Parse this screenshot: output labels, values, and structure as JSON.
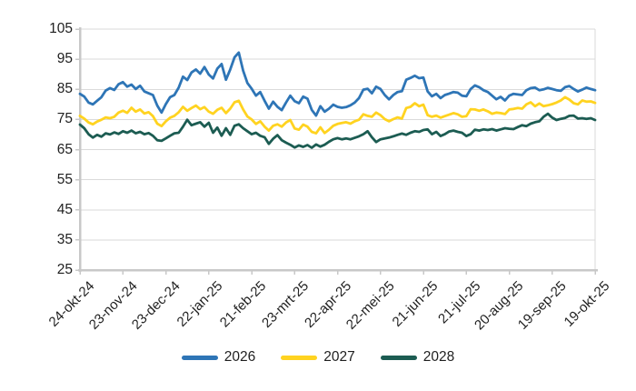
{
  "figure": {
    "background": "#FFFFFF"
  },
  "colors": {
    "series_2026": "#2E75B6",
    "series_2027": "#FFD320",
    "series_2028": "#1C5C52",
    "gridline": "#DADADA",
    "axis_line": "#C8C8C8",
    "text": "#1F1F1F"
  },
  "chart_data": {
    "type": "line",
    "title": "",
    "xlabel": "",
    "ylabel": "",
    "grid": true,
    "legend_position": "bottom",
    "y_axis": {
      "lim": [
        25,
        105
      ],
      "ticks": [
        25,
        35,
        45,
        55,
        65,
        75,
        85,
        95,
        105
      ]
    },
    "x_axis": {
      "tick_labels": [
        "24-okt-24",
        "23-nov-24",
        "23-dec-24",
        "22-jan-25",
        "21-feb-25",
        "23-mrt-25",
        "22-apr-25",
        "22-mei-25",
        "21-jun-25",
        "21-jul-25",
        "20-aug-25",
        "19-sep-25",
        "19-okt-25"
      ],
      "range": [
        "24-okt-24",
        "19-okt-25"
      ],
      "point_spacing_days": 3
    },
    "series": [
      {
        "name": "2026",
        "color": "#2E75B6",
        "values": [
          83.5,
          82.6,
          80.6,
          80.0,
          81.2,
          82.4,
          84.6,
          85.4,
          84.8,
          86.7,
          87.4,
          85.9,
          86.6,
          85.1,
          86.2,
          84.3,
          83.7,
          83.1,
          79.6,
          77.3,
          80.1,
          82.4,
          83.1,
          85.6,
          89.2,
          88.1,
          90.6,
          91.6,
          90.2,
          92.4,
          89.9,
          88.6,
          91.9,
          93.4,
          88.2,
          91.6,
          95.6,
          97.2,
          91.2,
          87.1,
          85.2,
          82.9,
          84.1,
          81.2,
          78.6,
          80.9,
          79.2,
          78.1,
          80.6,
          82.9,
          81.1,
          80.4,
          82.6,
          81.9,
          78.2,
          76.3,
          79.4,
          77.6,
          78.6,
          79.9,
          79.2,
          78.9,
          79.1,
          79.7,
          80.6,
          82.1,
          84.9,
          85.2,
          83.7,
          85.9,
          85.1,
          83.1,
          81.7,
          83.1,
          84.1,
          84.4,
          88.2,
          88.8,
          89.5,
          88.7,
          88.9,
          84.3,
          82.7,
          83.5,
          82.1,
          83.1,
          83.6,
          84.1,
          83.9,
          82.9,
          82.7,
          85.1,
          86.3,
          85.7,
          84.7,
          84.1,
          82.9,
          81.7,
          82.5,
          81.3,
          82.9,
          83.5,
          83.3,
          83.1,
          84.7,
          85.4,
          85.6,
          84.7,
          85.0,
          85.5,
          85.1,
          84.7,
          84.5,
          85.7,
          86.1,
          85.1,
          84.3,
          84.9,
          85.6,
          85.1,
          84.7
        ]
      },
      {
        "name": "2027",
        "color": "#FFD320",
        "values": [
          76.2,
          75.3,
          74.0,
          73.4,
          74.3,
          74.9,
          75.7,
          75.4,
          75.9,
          77.3,
          77.9,
          77.2,
          78.9,
          77.6,
          78.3,
          77.0,
          77.4,
          76.1,
          73.6,
          72.8,
          74.4,
          75.6,
          76.2,
          77.4,
          79.2,
          77.9,
          78.8,
          79.6,
          78.4,
          79.1,
          77.6,
          76.9,
          78.2,
          78.9,
          77.1,
          78.6,
          80.7,
          81.2,
          78.3,
          76.0,
          75.0,
          73.5,
          74.4,
          72.6,
          71.3,
          72.9,
          73.4,
          72.6,
          74.0,
          74.8,
          72.0,
          71.6,
          73.3,
          72.6,
          70.9,
          70.4,
          72.4,
          70.5,
          71.6,
          72.9,
          73.5,
          73.8,
          74.1,
          73.6,
          74.4,
          74.9,
          76.7,
          76.2,
          75.9,
          77.3,
          76.4,
          75.1,
          74.4,
          75.1,
          75.7,
          75.3,
          78.8,
          79.2,
          80.4,
          79.4,
          79.9,
          76.4,
          75.9,
          76.3,
          75.6,
          76.1,
          76.6,
          77.1,
          76.7,
          75.9,
          76.1,
          78.4,
          78.3,
          77.9,
          78.3,
          77.7,
          76.9,
          77.3,
          77.1,
          76.8,
          78.3,
          78.5,
          78.8,
          78.6,
          80.0,
          80.7,
          79.4,
          80.3,
          79.4,
          79.7,
          80.1,
          80.6,
          81.3,
          82.4,
          81.6,
          80.4,
          80.0,
          81.3,
          80.9,
          81.0,
          80.5
        ]
      },
      {
        "name": "2028",
        "color": "#1C5C52",
        "values": [
          73.3,
          72.1,
          70.1,
          69.0,
          69.9,
          69.3,
          70.4,
          70.0,
          70.7,
          70.2,
          71.1,
          70.6,
          71.3,
          70.4,
          70.9,
          70.1,
          70.5,
          69.6,
          68.1,
          67.9,
          68.7,
          69.6,
          70.4,
          70.6,
          72.6,
          74.9,
          73.1,
          73.6,
          74.1,
          72.6,
          73.9,
          70.6,
          72.3,
          69.6,
          72.1,
          69.9,
          72.9,
          73.4,
          72.1,
          71.1,
          70.1,
          70.6,
          69.6,
          69.1,
          66.9,
          68.6,
          69.8,
          68.1,
          67.3,
          66.6,
          65.7,
          66.4,
          65.9,
          66.5,
          65.6,
          66.7,
          66.0,
          66.6,
          67.6,
          68.4,
          68.8,
          68.4,
          68.7,
          68.4,
          68.9,
          69.4,
          70.1,
          71.1,
          69.1,
          67.5,
          68.4,
          68.7,
          69.0,
          69.4,
          69.9,
          70.3,
          69.9,
          70.6,
          71.1,
          70.9,
          71.5,
          71.7,
          70.1,
          70.9,
          69.5,
          70.1,
          71.0,
          71.3,
          70.9,
          70.6,
          69.5,
          70.1,
          71.6,
          71.3,
          71.7,
          71.5,
          71.8,
          71.3,
          71.7,
          72.1,
          71.9,
          71.8,
          72.5,
          73.1,
          72.8,
          73.6,
          74.1,
          74.4,
          75.9,
          76.9,
          75.6,
          74.8,
          75.2,
          75.5,
          76.2,
          76.3,
          75.3,
          75.4,
          75.2,
          75.4,
          74.8
        ]
      }
    ]
  }
}
